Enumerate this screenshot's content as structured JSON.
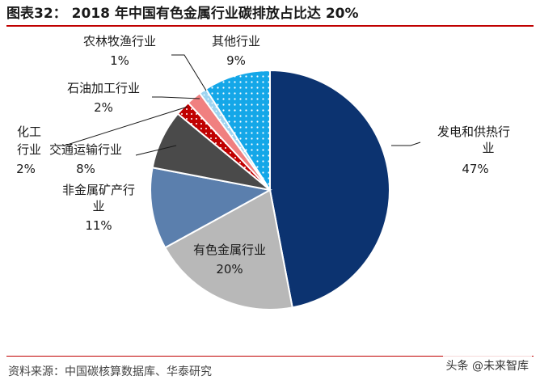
{
  "title": {
    "prefix": "图表32：",
    "text": "2018 年中国有色金属行业碳排放占比达 20%"
  },
  "source": "资料来源：中国碳核算数据库、华泰研究",
  "watermark": "头条 @未来智库",
  "colors": {
    "accent_rule": "#c00000",
    "power": "#0c3370",
    "nonferrous": "#b8b8b8",
    "nonmetal": "#5b7fad",
    "transport": "#4a4a4a",
    "chemical": "#c00000",
    "petroleum": "#f08080",
    "agri": "#9fd4f0",
    "other": "#14a7e8"
  },
  "chart_data": {
    "type": "pie",
    "title": "2018 年中国有色金属行业碳排放占比达 20%",
    "unit": "%",
    "slices": [
      {
        "key": "power",
        "label": [
          "发电和供热行",
          "业"
        ],
        "value": 47,
        "value_label": "47%"
      },
      {
        "key": "nonferrous",
        "label": [
          "有色金属行业"
        ],
        "value": 20,
        "value_label": "20%"
      },
      {
        "key": "nonmetal",
        "label": [
          "非金属矿产行",
          "业"
        ],
        "value": 11,
        "value_label": "11%"
      },
      {
        "key": "transport",
        "label": [
          "交通运输行业"
        ],
        "value": 8,
        "value_label": "8%"
      },
      {
        "key": "chemical",
        "label": [
          "化工",
          "行业"
        ],
        "value": 2,
        "value_label": "2%"
      },
      {
        "key": "petroleum",
        "label": [
          "石油加工行业"
        ],
        "value": 2,
        "value_label": "2%"
      },
      {
        "key": "agri",
        "label": [
          "农林牧渔行业"
        ],
        "value": 1,
        "value_label": "1%"
      },
      {
        "key": "other",
        "label": [
          "其他行业"
        ],
        "value": 9,
        "value_label": "9%"
      }
    ]
  }
}
